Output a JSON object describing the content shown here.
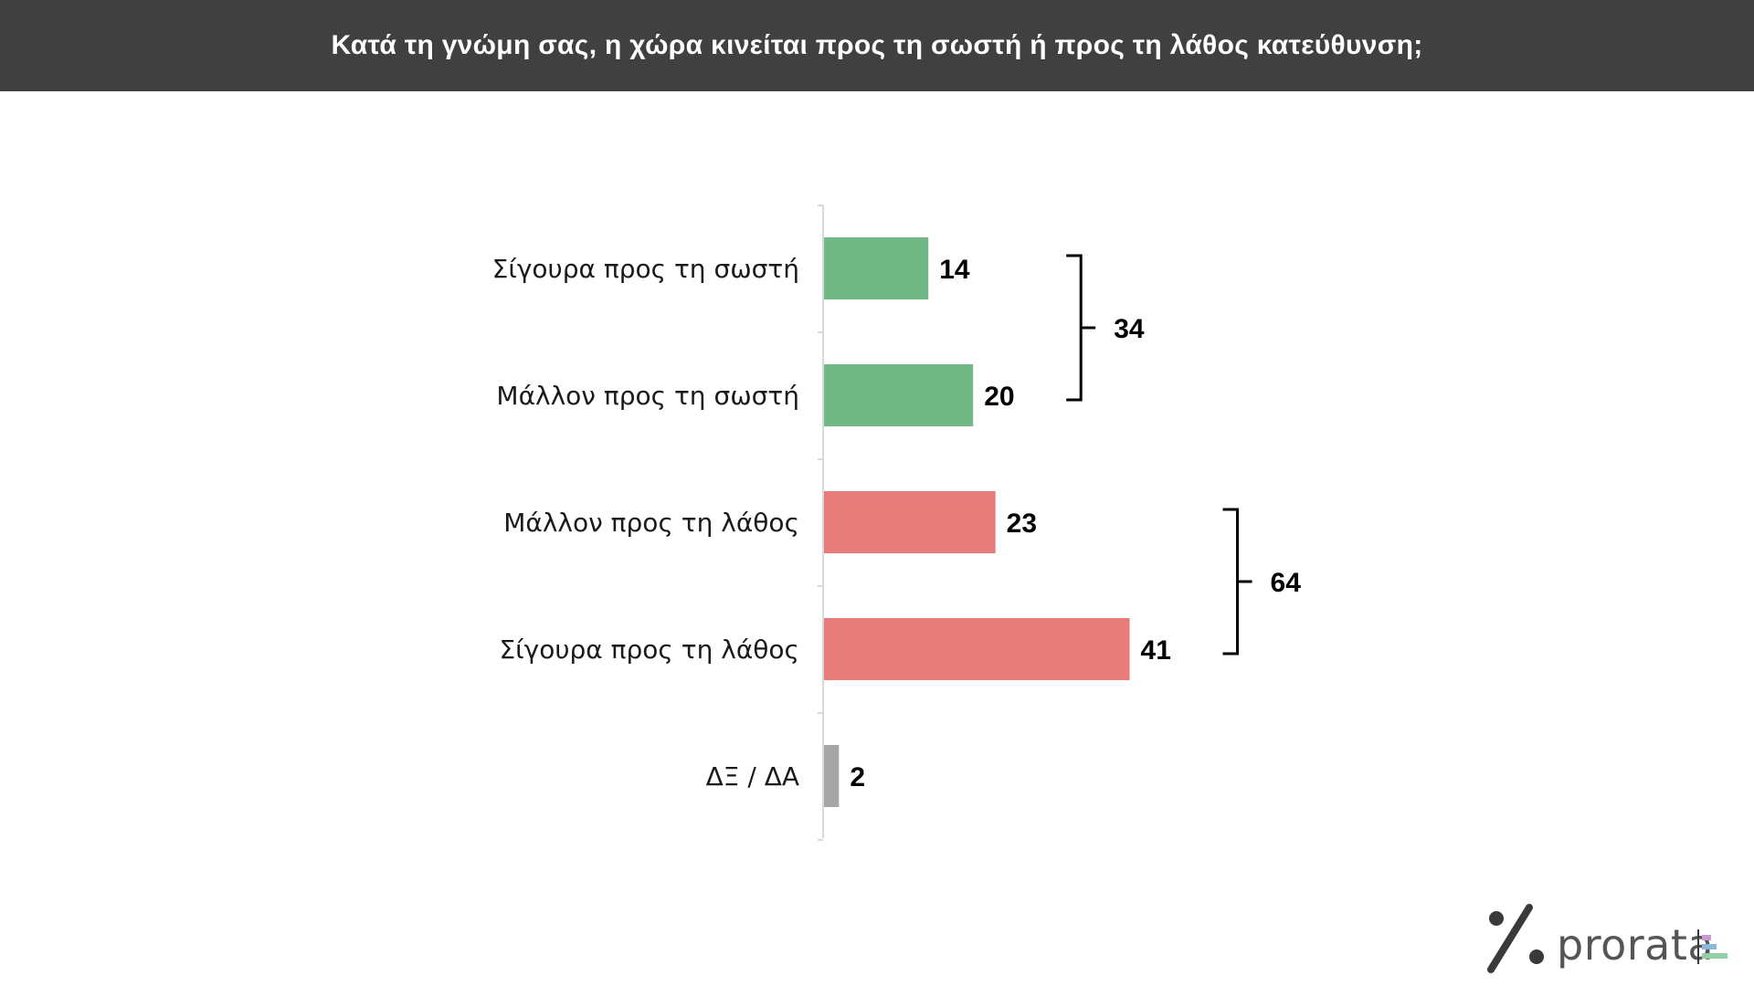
{
  "title": "Κατά τη γνώμη σας, η χώρα κινείται προς τη σωστή ή προς τη λάθος κατεύθυνση;",
  "chart_data": {
    "type": "bar",
    "orientation": "horizontal",
    "categories": [
      "Σίγουρα προς τη σωστή",
      "Μάλλον προς τη σωστή",
      "Μάλλον προς τη λάθος",
      "Σίγουρα προς τη λάθος",
      "ΔΞ / ΔΑ"
    ],
    "values": [
      14,
      20,
      23,
      41,
      2
    ],
    "bar_colors": [
      "#72b886",
      "#72b886",
      "#e87c7a",
      "#e87c7a",
      "#a6a6a6"
    ],
    "groups": [
      {
        "members": [
          0,
          1
        ],
        "total": 34
      },
      {
        "members": [
          2,
          3
        ],
        "total": 64
      }
    ],
    "xlim": [
      0,
      45
    ],
    "grid": false,
    "legend": "none",
    "data_labels": true
  },
  "logo": {
    "text": "prorata",
    "colors": [
      "#3a3a3a",
      "#c79ad0",
      "#8fb8d8",
      "#8fd0a6"
    ]
  }
}
